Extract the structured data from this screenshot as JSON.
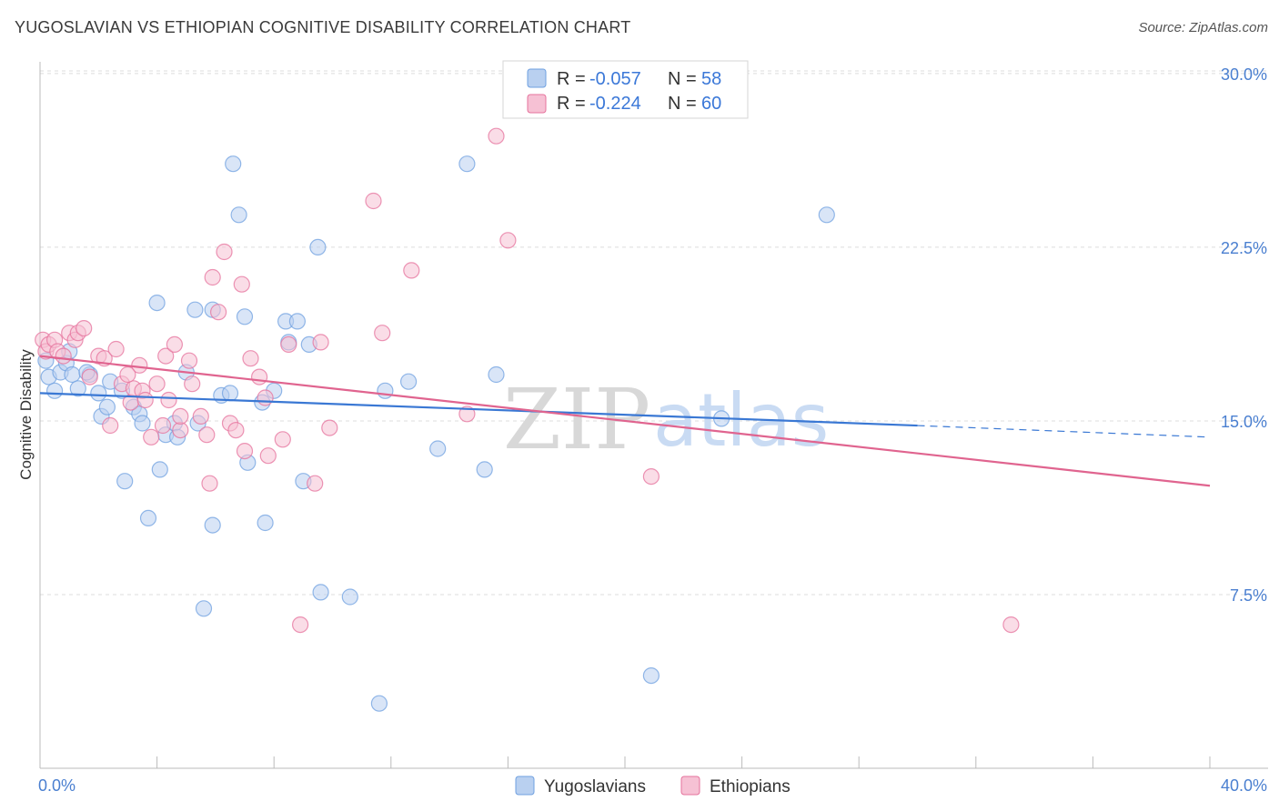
{
  "header": {
    "title": "YUGOSLAVIAN VS ETHIOPIAN COGNITIVE DISABILITY CORRELATION CHART",
    "source": "Source: ZipAtlas.com"
  },
  "watermark": {
    "zip": "ZIP",
    "atlas": "atlas"
  },
  "legend_top": {
    "r_label": "R =",
    "n_label": "N =",
    "rows": [
      {
        "r": "-0.057",
        "n": "58"
      },
      {
        "r": "-0.224",
        "n": "60"
      }
    ]
  },
  "colors": {
    "yugoslavians": "#6fa0e0",
    "yugoslavians_fill": "#b9d0f0",
    "ethiopians": "#e5729c",
    "ethiopians_fill": "#f6c1d4",
    "axis_label": "#4a7fd0",
    "grid": "#dcdcdc"
  },
  "chart_data": {
    "type": "scatter",
    "title": "YUGOSLAVIAN VS ETHIOPIAN COGNITIVE DISABILITY CORRELATION CHART",
    "xlabel": "",
    "ylabel": "Cognitive Disability",
    "xlim": [
      0,
      40
    ],
    "ylim": [
      0,
      31
    ],
    "x_tick_labels": [
      "0.0%",
      "40.0%"
    ],
    "y_ticks": [
      7.5,
      15.0,
      22.5,
      30.0
    ],
    "y_tick_labels": [
      "7.5%",
      "15.0%",
      "22.5%",
      "30.0%"
    ],
    "grid": "horizontal dashed",
    "legend_position": "top-center",
    "series": [
      {
        "name": "Yugoslavians",
        "r": -0.057,
        "n": 58,
        "trend": {
          "x": [
            0.0,
            30.0,
            40.0
          ],
          "y": [
            16.2,
            14.8,
            14.3
          ],
          "dashed_from_x": 30.0
        },
        "points": [
          [
            0.2,
            17.6
          ],
          [
            0.3,
            16.9
          ],
          [
            0.5,
            16.3
          ],
          [
            0.7,
            17.1
          ],
          [
            0.9,
            17.5
          ],
          [
            1.0,
            18.0
          ],
          [
            1.1,
            17.0
          ],
          [
            1.3,
            16.4
          ],
          [
            1.7,
            17.0
          ],
          [
            2.1,
            15.2
          ],
          [
            2.3,
            15.6
          ],
          [
            2.4,
            16.7
          ],
          [
            2.8,
            16.3
          ],
          [
            2.9,
            12.4
          ],
          [
            3.2,
            15.6
          ],
          [
            3.4,
            15.3
          ],
          [
            3.5,
            14.9
          ],
          [
            3.7,
            10.8
          ],
          [
            4.0,
            20.1
          ],
          [
            4.1,
            12.9
          ],
          [
            4.3,
            14.4
          ],
          [
            4.6,
            14.9
          ],
          [
            4.7,
            14.3
          ],
          [
            5.0,
            17.1
          ],
          [
            5.3,
            19.8
          ],
          [
            5.4,
            14.9
          ],
          [
            5.6,
            6.9
          ],
          [
            5.9,
            19.8
          ],
          [
            5.9,
            10.5
          ],
          [
            6.2,
            16.1
          ],
          [
            6.5,
            16.2
          ],
          [
            6.6,
            26.1
          ],
          [
            6.8,
            23.9
          ],
          [
            7.0,
            19.5
          ],
          [
            7.1,
            13.2
          ],
          [
            7.6,
            15.8
          ],
          [
            7.7,
            10.6
          ],
          [
            8.0,
            16.3
          ],
          [
            8.4,
            19.3
          ],
          [
            8.5,
            18.4
          ],
          [
            8.8,
            19.3
          ],
          [
            9.0,
            12.4
          ],
          [
            9.2,
            18.3
          ],
          [
            9.5,
            22.5
          ],
          [
            9.6,
            7.6
          ],
          [
            10.6,
            7.4
          ],
          [
            11.6,
            2.8
          ],
          [
            11.8,
            16.3
          ],
          [
            12.6,
            16.7
          ],
          [
            13.6,
            13.8
          ],
          [
            14.6,
            26.1
          ],
          [
            15.2,
            12.9
          ],
          [
            15.6,
            17.0
          ],
          [
            20.9,
            4.0
          ],
          [
            23.3,
            15.1
          ],
          [
            26.9,
            23.9
          ],
          [
            1.6,
            17.1
          ],
          [
            2.0,
            16.2
          ]
        ]
      },
      {
        "name": "Ethiopians",
        "r": -0.224,
        "n": 60,
        "trend": {
          "x": [
            0.0,
            40.0
          ],
          "y": [
            17.8,
            12.2
          ]
        },
        "points": [
          [
            0.1,
            18.5
          ],
          [
            0.2,
            18.0
          ],
          [
            0.3,
            18.3
          ],
          [
            0.5,
            18.5
          ],
          [
            0.6,
            18.0
          ],
          [
            0.8,
            17.8
          ],
          [
            1.0,
            18.8
          ],
          [
            1.2,
            18.5
          ],
          [
            1.3,
            18.8
          ],
          [
            1.5,
            19.0
          ],
          [
            1.7,
            16.9
          ],
          [
            2.0,
            17.8
          ],
          [
            2.2,
            17.7
          ],
          [
            2.4,
            14.8
          ],
          [
            2.6,
            18.1
          ],
          [
            2.8,
            16.6
          ],
          [
            3.1,
            15.8
          ],
          [
            3.2,
            16.4
          ],
          [
            3.4,
            17.4
          ],
          [
            3.5,
            16.3
          ],
          [
            3.6,
            15.9
          ],
          [
            3.8,
            14.3
          ],
          [
            4.0,
            16.6
          ],
          [
            4.2,
            14.8
          ],
          [
            4.3,
            17.8
          ],
          [
            4.4,
            15.9
          ],
          [
            4.6,
            18.3
          ],
          [
            4.8,
            14.6
          ],
          [
            4.8,
            15.2
          ],
          [
            5.1,
            17.6
          ],
          [
            5.2,
            16.6
          ],
          [
            5.5,
            15.2
          ],
          [
            5.7,
            14.4
          ],
          [
            5.8,
            12.3
          ],
          [
            5.9,
            21.2
          ],
          [
            6.1,
            19.7
          ],
          [
            6.3,
            22.3
          ],
          [
            6.5,
            14.9
          ],
          [
            6.7,
            14.6
          ],
          [
            6.9,
            20.9
          ],
          [
            7.0,
            13.7
          ],
          [
            7.2,
            17.7
          ],
          [
            7.5,
            16.9
          ],
          [
            7.7,
            16.0
          ],
          [
            7.8,
            13.5
          ],
          [
            8.3,
            14.2
          ],
          [
            8.5,
            18.3
          ],
          [
            8.9,
            6.2
          ],
          [
            9.4,
            12.3
          ],
          [
            9.6,
            18.4
          ],
          [
            9.9,
            14.7
          ],
          [
            11.4,
            24.5
          ],
          [
            11.7,
            18.8
          ],
          [
            12.7,
            21.5
          ],
          [
            14.6,
            15.3
          ],
          [
            15.6,
            27.3
          ],
          [
            16.0,
            22.8
          ],
          [
            20.9,
            12.6
          ],
          [
            33.2,
            6.2
          ],
          [
            3.0,
            17.0
          ]
        ]
      }
    ]
  },
  "legend_bottom": {
    "items": [
      "Yugoslavians",
      "Ethiopians"
    ]
  }
}
